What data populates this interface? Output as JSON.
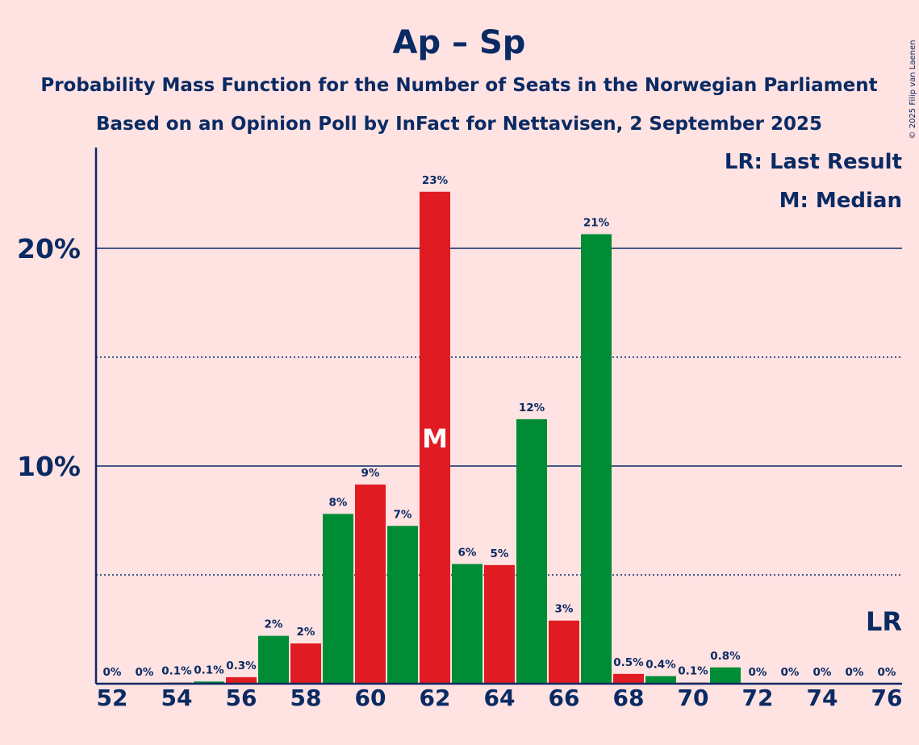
{
  "chart_data": {
    "type": "bar",
    "title": "Ap – Sp",
    "subtitle1": "Probability Mass Function for the Number of Seats in the Norwegian Parliament",
    "subtitle2": "Based on an Opinion Poll by InFact for Nettavisen, 2 September 2025",
    "copyright": "© 2025 Filip van Laenen",
    "x": [
      52,
      53,
      54,
      55,
      56,
      57,
      58,
      59,
      60,
      61,
      62,
      63,
      64,
      65,
      66,
      67,
      68,
      69,
      70,
      71,
      72,
      73,
      74,
      75,
      76
    ],
    "values": [
      0,
      0,
      0.05,
      0.1,
      0.3,
      2.2,
      1.85,
      7.8,
      9.15,
      7.25,
      22.6,
      5.5,
      5.45,
      12.15,
      2.9,
      20.65,
      0.45,
      0.35,
      0.05,
      0.75,
      0,
      0,
      0,
      0,
      0
    ],
    "labels": [
      "0%",
      "0%",
      "0.1%",
      "0.1%",
      "0.3%",
      "2%",
      "2%",
      "8%",
      "9%",
      "7%",
      "23%",
      "6%",
      "5%",
      "12%",
      "3%",
      "21%",
      "0.5%",
      "0.4%",
      "0.1%",
      "0.8%",
      "0%",
      "0%",
      "0%",
      "0%",
      "0%"
    ],
    "bar_colors": [
      "red",
      "green",
      "red",
      "green",
      "red",
      "green",
      "red",
      "green",
      "red",
      "green",
      "red",
      "green",
      "red",
      "green",
      "red",
      "green",
      "red",
      "green",
      "red",
      "green",
      "red",
      "green",
      "red",
      "green",
      "red"
    ],
    "colors": {
      "red": "#E11B22",
      "green": "#008C35",
      "axis": "#0A2A63",
      "background": "#FFE2E2"
    },
    "xticks": [
      52,
      54,
      56,
      58,
      60,
      62,
      64,
      66,
      68,
      70,
      72,
      74,
      76
    ],
    "xtick_labels": [
      "52",
      "54",
      "56",
      "58",
      "60",
      "62",
      "64",
      "66",
      "68",
      "70",
      "72",
      "74",
      "76"
    ],
    "yticks": [
      10,
      20
    ],
    "ytick_labels": [
      "10%",
      "20%"
    ],
    "ylim": [
      0,
      24.6
    ],
    "minor_gridlines": [
      5,
      15
    ],
    "median_seat": 62,
    "median_marker": "M",
    "last_result_seat": 76,
    "last_result_marker": "LR",
    "legend": [
      "LR: Last Result",
      "M: Median"
    ],
    "legend_position": "top-right"
  }
}
